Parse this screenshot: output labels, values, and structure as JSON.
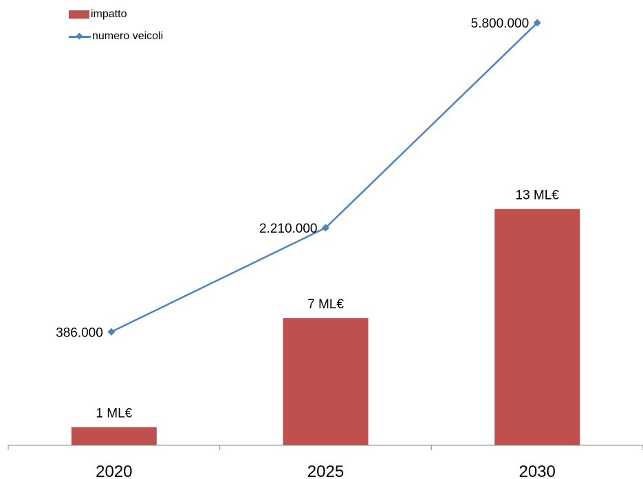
{
  "chart_data": {
    "type": "bar+line",
    "title": "",
    "categories": [
      "2020",
      "2025",
      "2030"
    ],
    "series": [
      {
        "name": "impatto",
        "kind": "bar",
        "values": [
          1,
          7,
          13
        ],
        "labels": [
          "1 ML€",
          "7 ML€",
          "13 ML€"
        ],
        "color": "#C0504D"
      },
      {
        "name": "numero veicoli",
        "kind": "line",
        "values": [
          386000,
          2210000,
          5800000
        ],
        "labels": [
          "386.000",
          "2.210.000",
          "5.800.000"
        ],
        "color": "#4F81BD"
      }
    ],
    "bar_ylim": [
      0,
      24.5
    ],
    "line_ylim": [
      -1600000,
      6200000
    ],
    "grid": false,
    "legend": "top-left"
  }
}
